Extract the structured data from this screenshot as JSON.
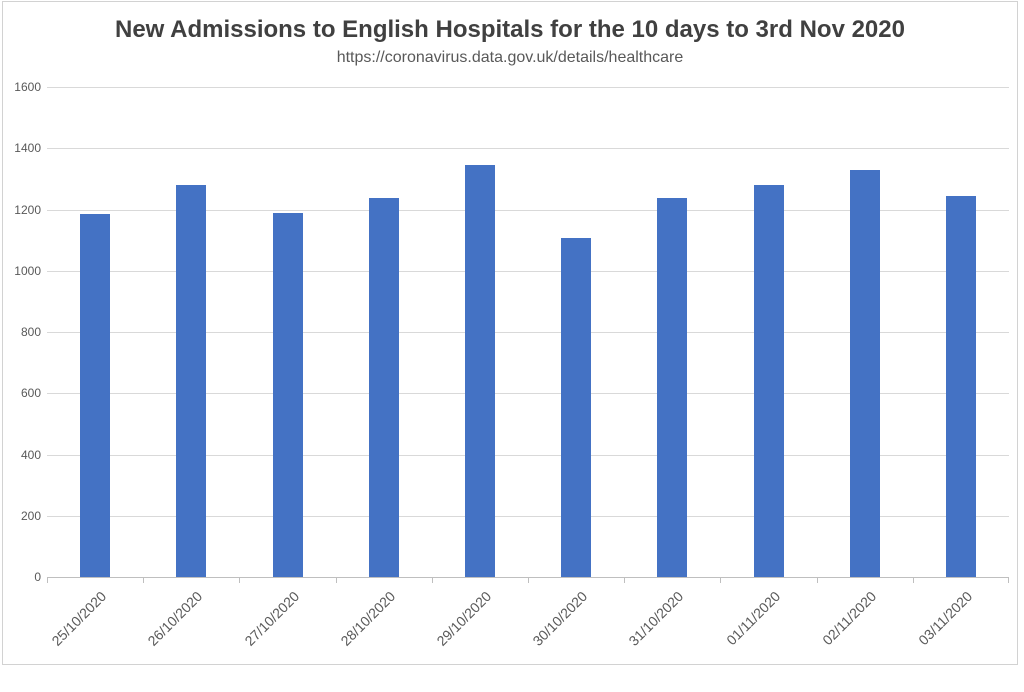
{
  "chart_data": {
    "type": "bar",
    "title": "New Admissions to English Hospitals for the 10 days to 3rd Nov 2020",
    "subtitle": "https://coronavirus.data.gov.uk/details/healthcare",
    "categories": [
      "25/10/2020",
      "26/10/2020",
      "27/10/2020",
      "28/10/2020",
      "29/10/2020",
      "30/10/2020",
      "31/10/2020",
      "01/11/2020",
      "02/11/2020",
      "03/11/2020"
    ],
    "values": [
      1185,
      1280,
      1190,
      1238,
      1345,
      1108,
      1238,
      1280,
      1330,
      1245
    ],
    "xlabel": "",
    "ylabel": "",
    "ylim": [
      0,
      1600
    ],
    "yticks": [
      0,
      200,
      400,
      600,
      800,
      1000,
      1200,
      1400,
      1600
    ],
    "grid": true,
    "legend_position": "none",
    "colors": {
      "bar": "#4472C4",
      "gridline": "#d9d9d9",
      "axis_line": "#bfbfbf",
      "tick_label": "#595959",
      "title_text": "#404040",
      "subtitle_text": "#595959"
    }
  }
}
